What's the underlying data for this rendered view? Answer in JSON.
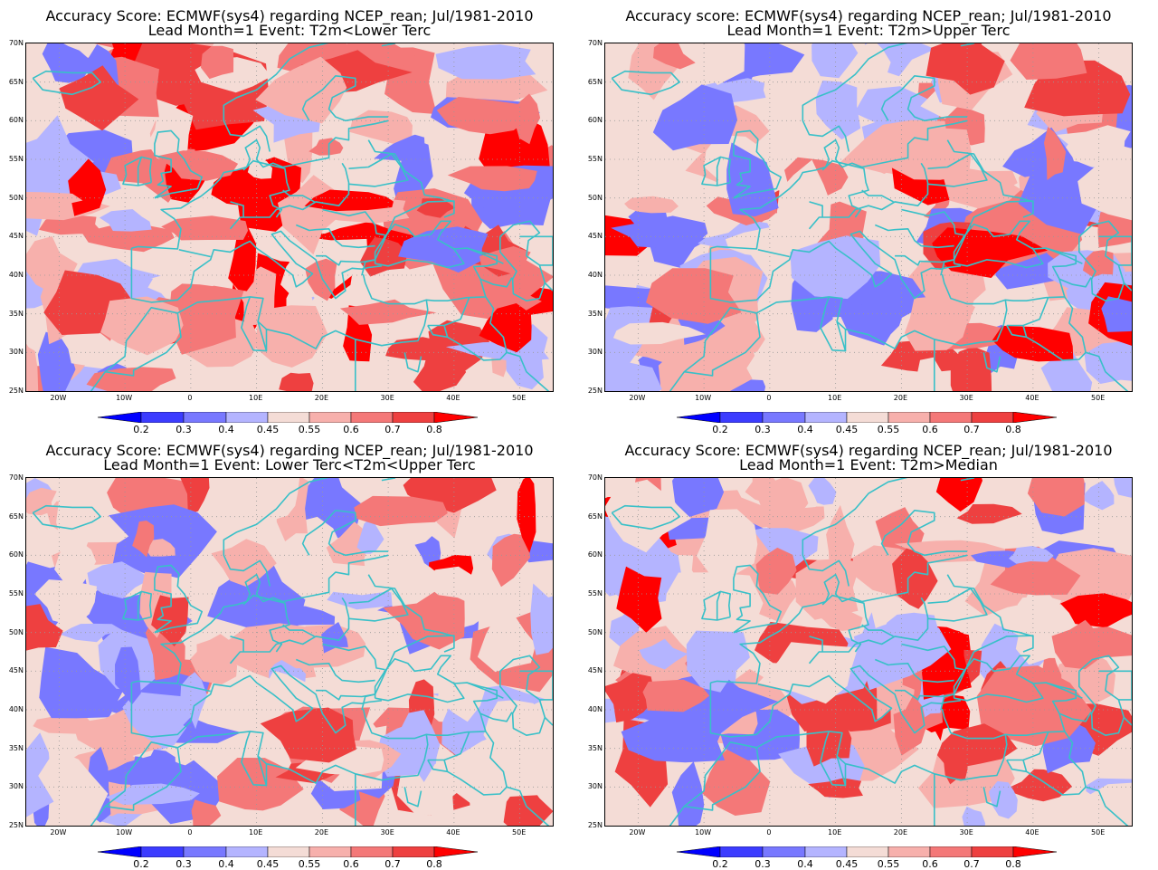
{
  "colors": {
    "lt02": "#0000ff",
    "b02_03": "#3c3cff",
    "b03_04": "#7878ff",
    "b04_045": "#b4b4ff",
    "b045_055": "#f4dcd6",
    "b055_06": "#f7b0ac",
    "b06_07": "#f47878",
    "b07_08": "#ee4040",
    "gt08": "#ff0000",
    "coast": "#38c0c8",
    "grid": "#999999"
  },
  "colorbar": {
    "labels": [
      "0.2",
      "0.3",
      "0.4",
      "0.45",
      "0.55",
      "0.6",
      "0.7",
      "0.8"
    ]
  },
  "axes": {
    "lat_labels": [
      "70N",
      "65N",
      "60N",
      "55N",
      "50N",
      "45N",
      "40N",
      "35N",
      "30N",
      "25N"
    ],
    "lon_labels": [
      "20W",
      "10W",
      "0",
      "10E",
      "20E",
      "30E",
      "40E",
      "50E"
    ]
  },
  "panels": [
    {
      "title_line1": "Accuracy Score: ECMWF(sys4) regarding NCEP_rean; Jul/1981-2010",
      "title_line2": "Lead Month=1 Event: T2m<Lower Terc"
    },
    {
      "title_line1": "Accuracy score: ECMWF(sys4) regarding NCEP_rean; Jul/1981-2010",
      "title_line2": "Lead Month=1 Event: T2m>Upper Terc"
    },
    {
      "title_line1": "Accuracy Score: ECMWF(sys4) regarding NCEP_rean; Jul/1981-2010",
      "title_line2": "Lead Month=1 Event: Lower Terc<T2m<Upper Terc"
    },
    {
      "title_line1": "Accuracy Score: ECMWF(sys4) regarding NCEP_rean; Jul/1981-2010",
      "title_line2": "Lead Month=1 Event: T2m>Median"
    }
  ]
}
